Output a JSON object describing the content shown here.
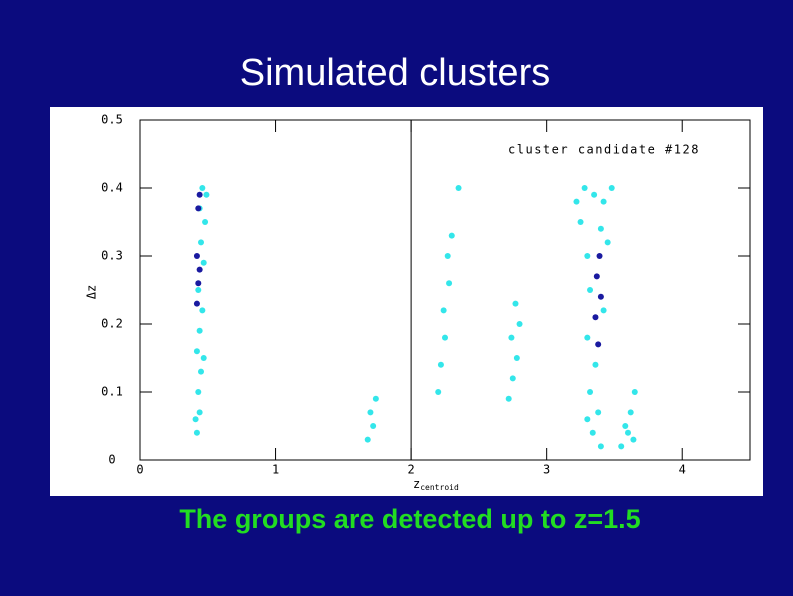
{
  "title": "Simulated clusters",
  "caption": "The groups are detected up to z=1.5",
  "chart_data": {
    "type": "scatter",
    "annotation": "cluster candidate #128",
    "xlabel": "z",
    "xlabel_sub": "centroid",
    "ylabel": "Δz",
    "xlim": [
      0,
      4.5
    ],
    "ylim": [
      0,
      0.5
    ],
    "xticks": [
      0,
      1,
      2,
      3,
      4
    ],
    "yticks": [
      0,
      0.1,
      0.2,
      0.3,
      0.4,
      0.5
    ],
    "vline": 2,
    "series": [
      {
        "color": "#33e6ea",
        "x": [
          0.42,
          0.44,
          0.43,
          0.45,
          0.42,
          0.44,
          0.46,
          0.43,
          0.47,
          0.45,
          0.48,
          0.44,
          0.49,
          0.46,
          0.41,
          0.47,
          1.68,
          1.72,
          1.7,
          1.74,
          2.2,
          2.22,
          2.25,
          2.24,
          2.28,
          2.27,
          2.3,
          2.35,
          2.72,
          2.75,
          2.78,
          2.74,
          2.8,
          2.77,
          3.22,
          3.28,
          3.35,
          3.42,
          3.48,
          3.25,
          3.4,
          3.3,
          3.45,
          3.32,
          3.42,
          3.3,
          3.36,
          3.32,
          3.38,
          3.34,
          3.4,
          3.3,
          3.55,
          3.6,
          3.64,
          3.62,
          3.65,
          3.58
        ],
        "values": [
          0.04,
          0.07,
          0.1,
          0.13,
          0.16,
          0.19,
          0.22,
          0.25,
          0.29,
          0.32,
          0.35,
          0.37,
          0.39,
          0.4,
          0.06,
          0.15,
          0.03,
          0.05,
          0.07,
          0.09,
          0.1,
          0.14,
          0.18,
          0.22,
          0.26,
          0.3,
          0.33,
          0.4,
          0.09,
          0.12,
          0.15,
          0.18,
          0.2,
          0.23,
          0.38,
          0.4,
          0.39,
          0.38,
          0.4,
          0.35,
          0.34,
          0.3,
          0.32,
          0.25,
          0.22,
          0.18,
          0.14,
          0.1,
          0.07,
          0.04,
          0.02,
          0.06,
          0.02,
          0.04,
          0.03,
          0.07,
          0.1,
          0.05
        ]
      },
      {
        "color": "#1a1aa0",
        "x": [
          0.42,
          0.43,
          0.44,
          0.42,
          0.43,
          0.44,
          3.38,
          3.36,
          3.4,
          3.37,
          3.39
        ],
        "values": [
          0.23,
          0.26,
          0.28,
          0.3,
          0.37,
          0.39,
          0.17,
          0.21,
          0.24,
          0.27,
          0.3
        ]
      }
    ]
  }
}
